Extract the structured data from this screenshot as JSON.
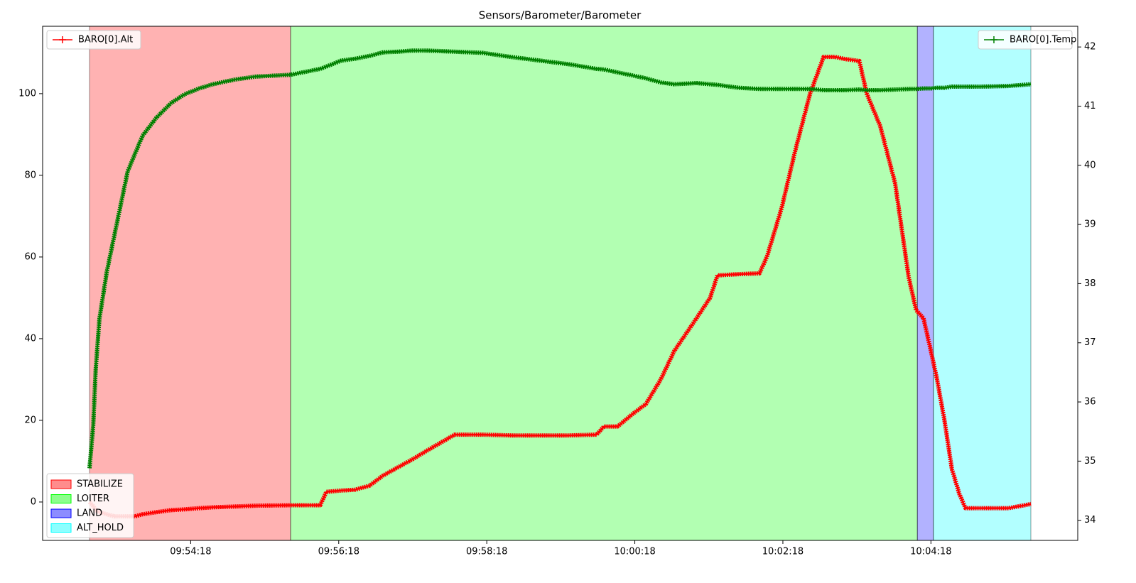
{
  "chart_data": {
    "type": "line",
    "title": "Sensors/Barometer/Barometer",
    "x": [
      "09:52:56",
      "09:52:59",
      "09:53:01",
      "09:53:04",
      "09:53:10",
      "09:53:16",
      "09:53:22",
      "09:53:27",
      "09:53:33",
      "09:53:39",
      "09:53:50",
      "09:54:02",
      "09:54:13",
      "09:54:25",
      "09:54:36",
      "09:54:54",
      "09:55:11",
      "09:55:39",
      "09:56:03",
      "09:56:08",
      "09:56:20",
      "09:56:31",
      "09:56:43",
      "09:56:54",
      "09:57:06",
      "09:57:18",
      "09:57:29",
      "09:57:52",
      "09:58:15",
      "09:58:38",
      "09:59:01",
      "09:59:24",
      "09:59:47",
      "09:59:53",
      "10:00:04",
      "10:00:16",
      "10:00:27",
      "10:00:39",
      "10:00:50",
      "10:01:08",
      "10:01:19",
      "10:01:25",
      "10:01:42",
      "10:01:59",
      "10:02:05",
      "10:02:17",
      "10:02:28",
      "10:02:40",
      "10:02:51",
      "10:03:00",
      "10:03:08",
      "10:03:20",
      "10:03:26",
      "10:03:37",
      "10:03:49",
      "10:04:00",
      "10:04:06",
      "10:04:12",
      "10:04:18",
      "10:04:23",
      "10:04:29",
      "10:04:35",
      "10:04:41",
      "10:04:46",
      "10:04:58",
      "10:05:21",
      "10:05:39"
    ],
    "series": [
      {
        "name": "BARO[0].Alt",
        "color": "#ff0000",
        "axis": "y",
        "legend": "upper left",
        "values": [
          0,
          -1,
          -2,
          -2.5,
          -3,
          -3.5,
          -3.5,
          -3.5,
          -3.5,
          -3,
          -2.5,
          -2,
          -1.8,
          -1.5,
          -1.3,
          -1.1,
          -0.9,
          -0.8,
          -0.8,
          2.5,
          2.8,
          3,
          4,
          6.5,
          8.5,
          10.5,
          12.5,
          16.5,
          16.5,
          16.3,
          16.3,
          16.3,
          16.5,
          18.5,
          18.5,
          21.5,
          24,
          30,
          37,
          45,
          50,
          55.5,
          55.8,
          56,
          60,
          72,
          86,
          100,
          109,
          109,
          108.5,
          108,
          100,
          92,
          78,
          55,
          47,
          45,
          37,
          30,
          20,
          8,
          2,
          -1.5,
          -1.5,
          -1.5,
          -0.5
        ]
      },
      {
        "name": "BARO[0].Temp",
        "color": "#008000",
        "axis": "y2",
        "legend": "upper right",
        "values": [
          34.88,
          35.6,
          36.55,
          37.4,
          38.2,
          38.8,
          39.4,
          39.9,
          40.2,
          40.5,
          40.8,
          41.05,
          41.2,
          41.3,
          41.37,
          41.45,
          41.5,
          41.53,
          41.63,
          41.67,
          41.77,
          41.8,
          41.85,
          41.91,
          41.92,
          41.94,
          41.94,
          41.92,
          41.9,
          41.83,
          41.77,
          41.71,
          41.63,
          41.62,
          41.57,
          41.52,
          41.47,
          41.4,
          41.37,
          41.39,
          41.37,
          41.36,
          41.31,
          41.29,
          41.29,
          41.29,
          41.29,
          41.29,
          41.27,
          41.27,
          41.27,
          41.28,
          41.27,
          41.27,
          41.28,
          41.29,
          41.29,
          41.3,
          41.3,
          41.31,
          41.31,
          41.33,
          41.33,
          41.33,
          41.33,
          41.34,
          41.37
        ]
      }
    ],
    "modes": [
      {
        "name": "STABILIZE",
        "color": "#ff0000",
        "start": "09:52:56",
        "end": "09:55:39"
      },
      {
        "name": "LOITER",
        "color": "#00ff00",
        "start": "09:55:39",
        "end": "10:04:07"
      },
      {
        "name": "LAND",
        "color": "#0000ff",
        "start": "10:04:07",
        "end": "10:04:20"
      },
      {
        "name": "ALT_HOLD",
        "color": "#00ffff",
        "start": "10:04:20",
        "end": "10:05:39"
      }
    ],
    "modes_legend": "lower left",
    "xlim": [
      "09:52:18",
      "10:06:17"
    ],
    "xticks": [
      "09:54:18",
      "09:56:18",
      "09:58:18",
      "10:00:18",
      "10:02:18",
      "10:04:18"
    ],
    "ylim": [
      -9.4,
      116.5
    ],
    "yticks": [
      0,
      20,
      40,
      60,
      80,
      100
    ],
    "y2lim": [
      33.66,
      42.35
    ],
    "y2ticks": [
      34,
      35,
      36,
      37,
      38,
      39,
      40,
      41,
      42
    ],
    "grid": false
  }
}
